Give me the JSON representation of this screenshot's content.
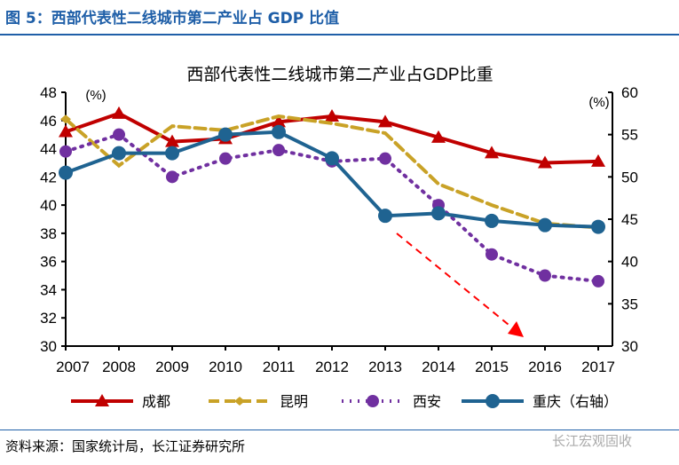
{
  "header": {
    "figure_title": "图 5：西部代表性二线城市第二产业占 GDP 比值"
  },
  "footer": {
    "source": "资料来源：国家统计局，长江证券研究所",
    "watermark": "长江宏观固收"
  },
  "chart_data": {
    "type": "line",
    "title": "西部代表性二线城市第二产业占GDP比重",
    "x": [
      "2007",
      "2008",
      "2009",
      "2010",
      "2011",
      "2012",
      "2013",
      "2014",
      "2015",
      "2016",
      "2017"
    ],
    "y_left": {
      "label": "(%)",
      "range": [
        30,
        48
      ],
      "ticks": [
        30,
        32,
        34,
        36,
        38,
        40,
        42,
        44,
        46,
        48
      ]
    },
    "y_right": {
      "label": "(%)",
      "range": [
        30,
        60
      ],
      "ticks": [
        30,
        35,
        40,
        45,
        50,
        55,
        60
      ]
    },
    "grid": false,
    "legend": "bottom",
    "series": [
      {
        "name": "成都",
        "axis": "left",
        "color": "#c00000",
        "style": "solid",
        "marker": "triangle",
        "values": [
          45.2,
          46.5,
          44.5,
          44.7,
          45.9,
          46.3,
          45.9,
          44.8,
          43.7,
          43.0,
          43.1
        ]
      },
      {
        "name": "昆明",
        "axis": "left",
        "color": "#c9a227",
        "style": "dashed",
        "marker": "diamond",
        "values": [
          46.1,
          42.8,
          45.6,
          45.3,
          46.3,
          45.8,
          45.1,
          41.5,
          40.0,
          38.7,
          38.4
        ]
      },
      {
        "name": "西安",
        "axis": "left",
        "color": "#7030a0",
        "style": "dotted",
        "marker": "circle",
        "values": [
          43.8,
          45.0,
          42.0,
          43.3,
          43.9,
          43.1,
          43.3,
          40.0,
          36.5,
          35.0,
          34.6
        ]
      },
      {
        "name": "重庆（右轴）",
        "axis": "right",
        "color": "#1f6391",
        "style": "solid",
        "marker": "circle",
        "values": [
          50.5,
          52.8,
          52.8,
          55.0,
          55.3,
          52.2,
          45.4,
          45.7,
          44.8,
          44.3,
          44.1
        ]
      }
    ],
    "annotations": [
      {
        "type": "arrow",
        "color": "#ff0000",
        "style": "dashed",
        "direction": "down-right"
      }
    ]
  }
}
